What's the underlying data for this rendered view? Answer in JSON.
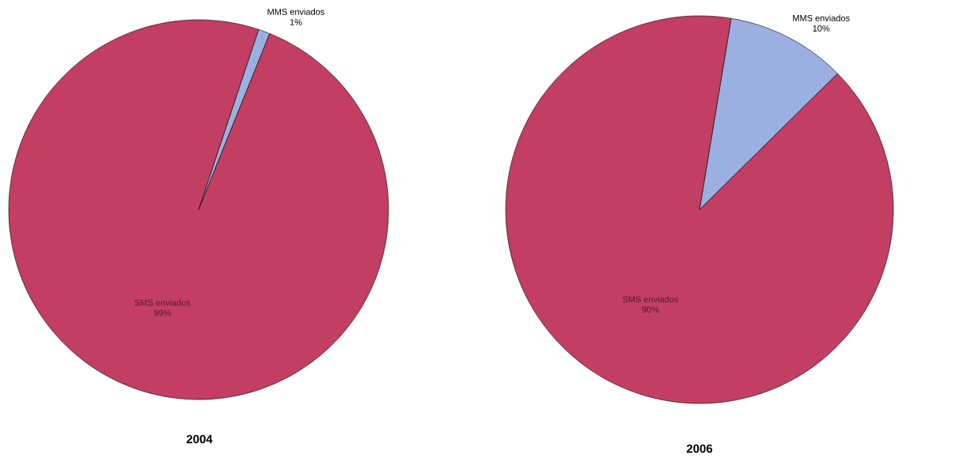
{
  "chart_data": [
    {
      "type": "pie",
      "title": "2004",
      "categories": [
        "MMS enviados",
        "SMS enviados"
      ],
      "values": [
        1,
        99
      ],
      "value_labels": [
        "1%",
        "99%"
      ],
      "colors": [
        "#9bb0e0",
        "#c23e62"
      ]
    },
    {
      "type": "pie",
      "title": "2006",
      "categories": [
        "MMS enviados",
        "SMS enviados"
      ],
      "values": [
        10,
        90
      ],
      "value_labels": [
        "10%",
        "90%"
      ],
      "colors": [
        "#9bb0e0",
        "#c23e62"
      ]
    }
  ]
}
